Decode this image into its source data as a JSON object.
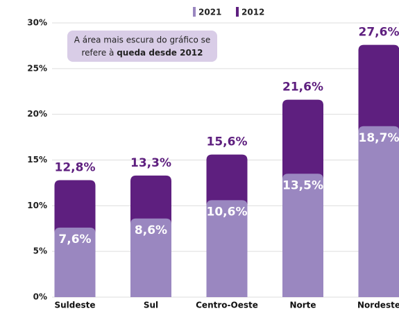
{
  "chart_data": {
    "type": "overlap-bar",
    "annotation": {
      "line1": "A área mais escura do gráfico se",
      "line2": "refere à ",
      "line2_bold": "queda desde 2012"
    },
    "categories": [
      "Suldeste",
      "Sul",
      "Centro-Oeste",
      "Norte",
      "Nordeste"
    ],
    "series": [
      {
        "name": "2012",
        "color": "#5e1f7f",
        "values": [
          12.8,
          13.3,
          15.6,
          21.6,
          27.6
        ],
        "value_labels": [
          "12,8%",
          "13,3%",
          "15,6%",
          "21,6%",
          "27,6%"
        ]
      },
      {
        "name": "2021",
        "color": "#9a87c0",
        "values": [
          7.6,
          8.6,
          10.6,
          13.5,
          18.7
        ],
        "value_labels": [
          "7,6%",
          "8,6%",
          "10,6%",
          "13,5%",
          "18,7%"
        ]
      }
    ],
    "ylim": [
      0,
      30
    ],
    "yticks": [
      {
        "value": 0,
        "label": "0%"
      },
      {
        "value": 5,
        "label": "5%"
      },
      {
        "value": 10,
        "label": "10%"
      },
      {
        "value": 15,
        "label": "15%"
      },
      {
        "value": 20,
        "label": "20%"
      },
      {
        "value": 25,
        "label": "25%"
      },
      {
        "value": 30,
        "label": "30%"
      }
    ],
    "grid": true
  }
}
